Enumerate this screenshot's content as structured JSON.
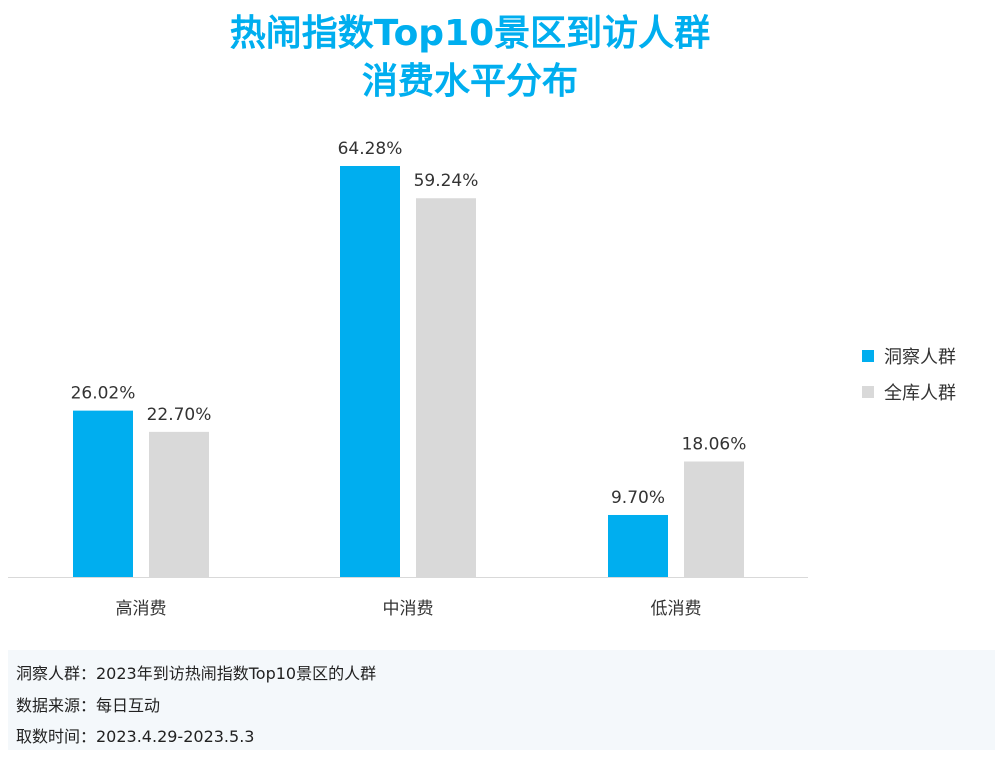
{
  "chart_data": {
    "type": "bar",
    "title": [
      "热闹指数Top10景区到访人群",
      "消费水平分布"
    ],
    "categories": [
      "高消费",
      "中消费",
      "低消费"
    ],
    "series": [
      {
        "name": "洞察人群",
        "values": [
          26.02,
          64.28,
          9.7
        ],
        "labels": [
          "26.02%",
          "64.28%",
          "9.70%"
        ],
        "color": "#00aeef"
      },
      {
        "name": "全库人群",
        "values": [
          22.7,
          59.24,
          18.06
        ],
        "labels": [
          "22.70%",
          "59.24%",
          "18.06%"
        ],
        "color": "#d9d9d9"
      }
    ],
    "ylim": [
      0,
      70
    ],
    "grid": false,
    "legend": "right"
  },
  "footer": [
    "洞察人群：2023年到访热闹指数Top10景区的人群",
    "数据来源：每日互动",
    "取数时间：2023.4.29-2023.5.3"
  ]
}
